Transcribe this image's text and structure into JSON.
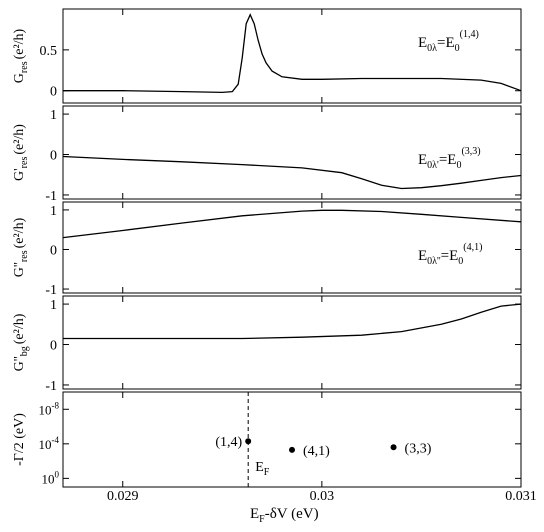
{
  "chart_data": {
    "type": "line",
    "shared_x": {
      "range": [
        0.0287,
        0.031
      ],
      "ticks": [
        0.029,
        0.03,
        0.031
      ],
      "tick_labels": [
        "0.029",
        "0.03",
        "0.031"
      ],
      "label_main": "E",
      "label_sub": "F",
      "label_rest": "-δV (eV)"
    },
    "panels": [
      {
        "id": "g_res",
        "ylabel": {
          "main": "G",
          "sub": "res",
          "unit": "(e²/h)"
        },
        "ylim": [
          -0.15,
          1.0
        ],
        "yticks": [
          0,
          0.5
        ],
        "ytick_labels": [
          "0",
          "0.5"
        ],
        "annotation": {
          "base": "E",
          "sub": "0λ",
          "eq": "=E",
          "sub2": "0",
          "sup": "(1,4)"
        },
        "series": [
          {
            "x": [
              0.0287,
              0.029,
              0.0293,
              0.0295,
              0.02955,
              0.02958,
              0.0296,
              0.02962,
              0.02964,
              0.02966,
              0.02968,
              0.0297,
              0.02972,
              0.02975,
              0.0298,
              0.0299,
              0.03,
              0.0302,
              0.0304,
              0.0306,
              0.0308,
              0.0309,
              0.031
            ],
            "y": [
              0.0,
              0.0,
              -0.01,
              -0.02,
              -0.01,
              0.08,
              0.4,
              0.82,
              0.93,
              0.82,
              0.62,
              0.45,
              0.34,
              0.24,
              0.17,
              0.14,
              0.14,
              0.15,
              0.15,
              0.15,
              0.13,
              0.09,
              0.0
            ]
          }
        ]
      },
      {
        "id": "g_res_prime",
        "ylabel": {
          "main": "G'",
          "sub": "res",
          "unit": "(e²/h)"
        },
        "ylim": [
          -1.1,
          1.2
        ],
        "yticks": [
          -1,
          0,
          1
        ],
        "ytick_labels": [
          "-1",
          "0",
          "1"
        ],
        "annotation": {
          "base": "E",
          "sub": "0λ'",
          "eq": "=E",
          "sub2": "0",
          "sup": "(3,3)"
        },
        "series": [
          {
            "x": [
              0.0287,
              0.029,
              0.0293,
              0.0296,
              0.0299,
              0.0301,
              0.0302,
              0.0303,
              0.0304,
              0.0305,
              0.0306,
              0.0307,
              0.0308,
              0.0309,
              0.031
            ],
            "y": [
              -0.05,
              -0.12,
              -0.18,
              -0.25,
              -0.33,
              -0.45,
              -0.6,
              -0.76,
              -0.84,
              -0.82,
              -0.77,
              -0.71,
              -0.64,
              -0.57,
              -0.52
            ]
          }
        ]
      },
      {
        "id": "g_res_dprime",
        "ylabel": {
          "main": "G''",
          "sub": "res",
          "unit": "(e²/h)"
        },
        "ylim": [
          -1.1,
          1.2
        ],
        "yticks": [
          -1,
          0,
          1
        ],
        "ytick_labels": [
          "-1",
          "0",
          "1"
        ],
        "annotation": {
          "base": "E",
          "sub": "0λ''",
          "eq": "=E",
          "sub2": "0",
          "sup": "(4,1)"
        },
        "series": [
          {
            "x": [
              0.0287,
              0.029,
              0.0293,
              0.0296,
              0.0299,
              0.03,
              0.0301,
              0.0303,
              0.0305,
              0.0307,
              0.031
            ],
            "y": [
              0.3,
              0.48,
              0.67,
              0.85,
              0.97,
              0.99,
              0.99,
              0.96,
              0.89,
              0.81,
              0.7
            ]
          }
        ]
      },
      {
        "id": "g_bg_dprime",
        "ylabel": {
          "main": "G''",
          "sub": "bg",
          "unit": "(e²/h)"
        },
        "ylim": [
          -1.1,
          1.2
        ],
        "yticks": [
          -1,
          0,
          1
        ],
        "ytick_labels": [
          "-1",
          "0",
          "1"
        ],
        "series": [
          {
            "x": [
              0.0287,
              0.029,
              0.0293,
              0.0296,
              0.0299,
              0.0302,
              0.0304,
              0.0306,
              0.0307,
              0.0308,
              0.0309,
              0.031
            ],
            "y": [
              0.15,
              0.15,
              0.15,
              0.15,
              0.18,
              0.23,
              0.32,
              0.5,
              0.63,
              0.8,
              0.95,
              1.0
            ]
          }
        ]
      },
      {
        "id": "gamma",
        "ylabel": {
          "main": "-Γ/2 (eV)"
        },
        "ylim_log10": [
          1,
          -10
        ],
        "yticks_log10": [
          0,
          -4,
          -8
        ],
        "ytick_labels": [
          {
            "base": "10",
            "exp": "0"
          },
          {
            "base": "10",
            "exp": "-4"
          },
          {
            "base": "10",
            "exp": "-8"
          }
        ],
        "points": [
          {
            "label": "(1,4)",
            "x": 0.02963,
            "log10y": -4.3
          },
          {
            "label": "(4,1)",
            "x": 0.02985,
            "log10y": -3.3
          },
          {
            "label": "(3,3)",
            "x": 0.03036,
            "log10y": -3.6
          }
        ],
        "vline": {
          "x": 0.02963,
          "label_main": "E",
          "label_sub": "F"
        }
      }
    ]
  }
}
